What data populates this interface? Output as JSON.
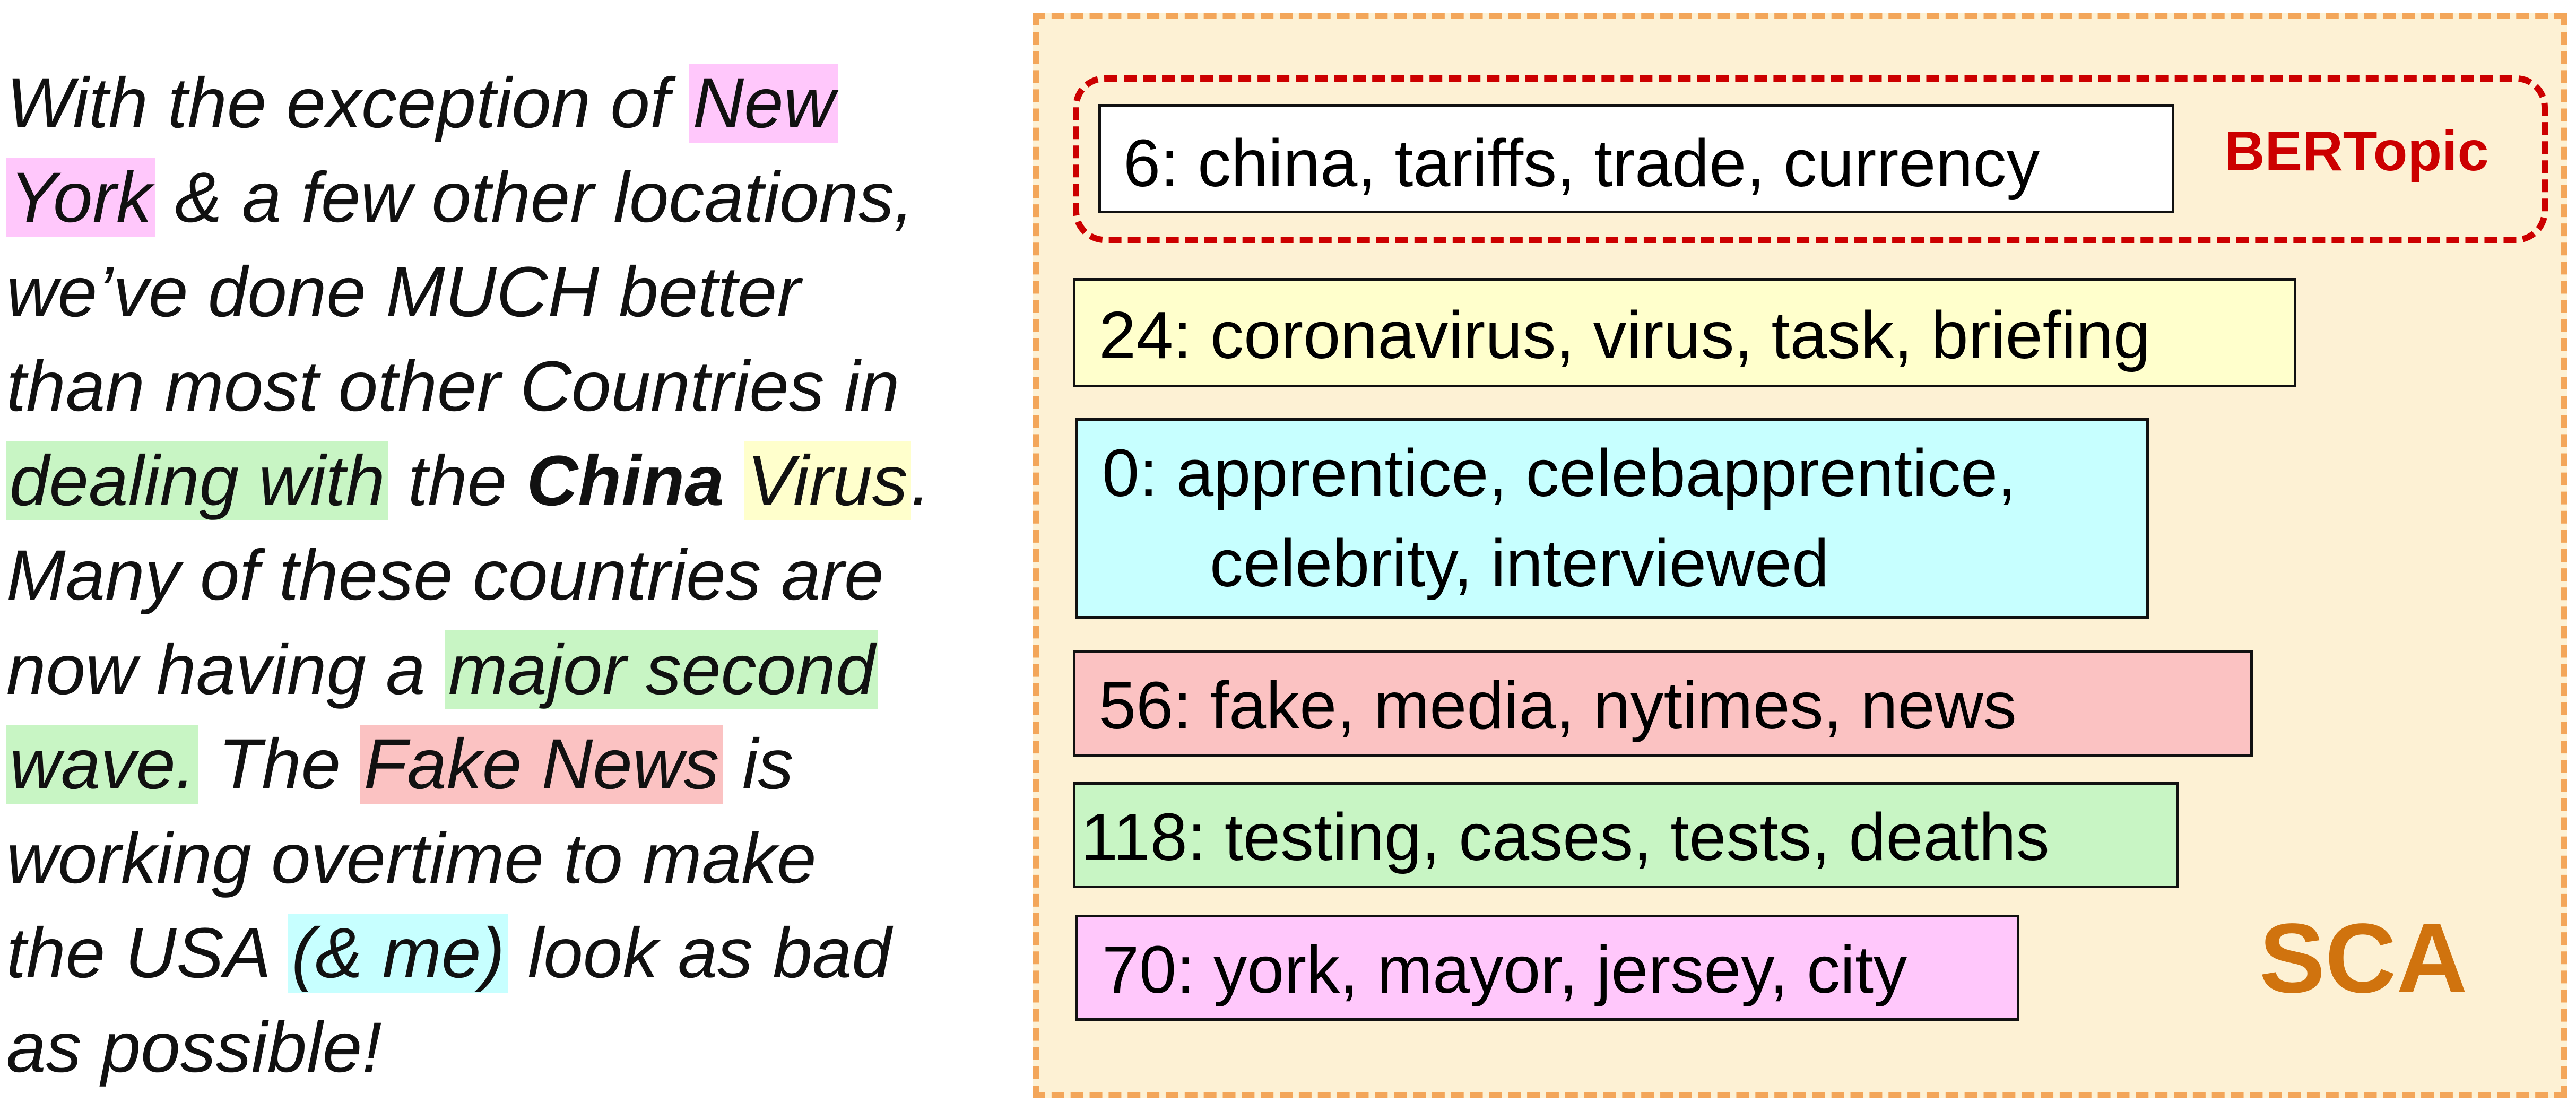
{
  "tweet": {
    "lines": [
      [
        {
          "t": "With the exception of "
        },
        {
          "t": "New",
          "hl": "pink"
        }
      ],
      [
        {
          "t": "York",
          "hl": "pink"
        },
        {
          "t": " & a few other locations,"
        }
      ],
      [
        {
          "t": "we’ve done MUCH better"
        }
      ],
      [
        {
          "t": "than most other Countries in"
        }
      ],
      [
        {
          "t": "dealing with",
          "hl": "green"
        },
        {
          "t": " the "
        },
        {
          "t": "China",
          "bold": true
        },
        {
          "t": " "
        },
        {
          "t": "Virus",
          "hl": "yellow"
        },
        {
          "t": "."
        }
      ],
      [
        {
          "t": "Many of these countries are"
        }
      ],
      [
        {
          "t": "now having a "
        },
        {
          "t": "major second",
          "hl": "green"
        }
      ],
      [
        {
          "t": "wave.",
          "hl": "green"
        },
        {
          "t": " The "
        },
        {
          "t": "Fake News",
          "hl": "red"
        },
        {
          "t": " is"
        }
      ],
      [
        {
          "t": "working overtime to make"
        }
      ],
      [
        {
          "t": "the USA "
        },
        {
          "t": "(& me)",
          "hl": "cyan"
        },
        {
          "t": " look as bad"
        }
      ],
      [
        {
          "t": "as possible!"
        }
      ]
    ]
  },
  "topics": {
    "bertopic": {
      "id": "6:",
      "words": " china, tariffs, trade, currency"
    },
    "t24": {
      "id": "24:",
      "words": " coronavirus, virus, task, briefing"
    },
    "t0": {
      "id": "0:",
      "words": " apprentice, celebapprentice,",
      "words2": "celebrity, interviewed"
    },
    "t56": {
      "id": "56:",
      "words": " fake, media, nytimes, news"
    },
    "t118": {
      "id": "118:",
      "words": " testing, cases, tests, deaths"
    },
    "t70": {
      "id": "70:",
      "words": " york, mayor, jersey, city"
    }
  },
  "labels": {
    "bertopic": "BERTopic",
    "sca": "SCA"
  },
  "colors": {
    "pink": "#ffc7fb",
    "green": "#c8f5c4",
    "yellow": "#ffffcc",
    "red": "#fbc2c2",
    "cyan": "#c7ffff",
    "panel_bg": "#fdf1d4",
    "panel_border": "#f3a65a",
    "bertopic_red": "#cc0000",
    "sca_orange": "#d0730e"
  }
}
